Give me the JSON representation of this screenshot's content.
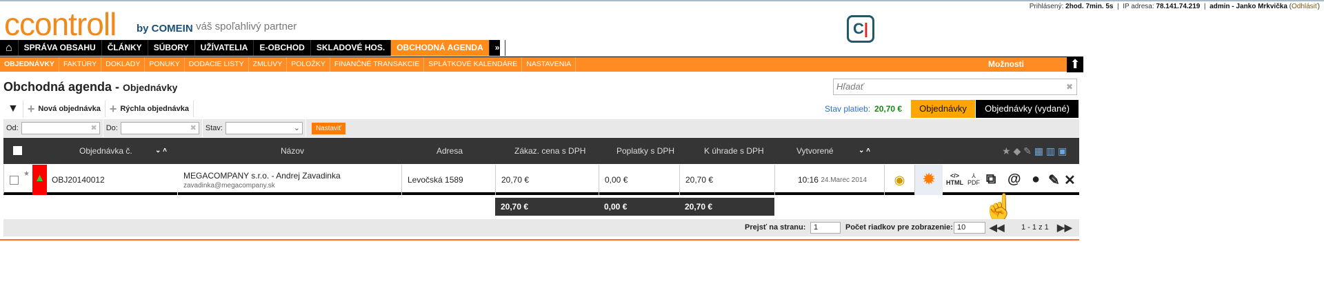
{
  "header": {
    "logo": "ccontroll",
    "logo_by": "by COMEIN",
    "tagline": "- váš spoľahlivý partner",
    "session": {
      "logged_label": "Prihlásený:",
      "logged_time": "2hod. 7min. 5s",
      "ip_label": "IP adresa:",
      "ip": "78.141.74.219",
      "user": "admin - Janko Mrkvička",
      "logout": "Odhlásiť"
    },
    "badge": "C"
  },
  "mainnav": {
    "items": [
      "SPRÁVA OBSAHU",
      "ČLÁNKY",
      "SÚBORY",
      "UŽÍVATELIA",
      "E-OBCHOD",
      "SKLADOVÉ HOS.",
      "OBCHODNÁ AGENDA"
    ],
    "more": "»"
  },
  "subnav": {
    "items": [
      "OBJEDNÁVKY",
      "FAKTÚRY",
      "DOKLADY",
      "PONUKY",
      "DODACIE LISTY",
      "ZMLUVY",
      "POLOŽKY",
      "FINANČNÉ TRANSAKCIE",
      "SPLÁTKOVÉ KALENDÁRE",
      "NASTAVENIA"
    ],
    "options": "Možnosti"
  },
  "page": {
    "title": "Obchodná agenda -",
    "subtitle": "Objednávky",
    "search_placeholder": "Hľadať"
  },
  "toolbar": {
    "new": "Nová objednávka",
    "quick": "Rýchla objednávka",
    "pay_label": "Stav platieb:",
    "pay_value": "20,70 €",
    "tab_orders": "Objednávky",
    "tab_issued": "Objednávky (vydané)"
  },
  "filter": {
    "from": "Od:",
    "to": "Do:",
    "state": "Stav:",
    "apply": "Nastaviť"
  },
  "table": {
    "headers": [
      "Objednávka č.",
      "Názov",
      "Adresa",
      "Zákaz. cena s DPH",
      "Poplatky s DPH",
      "K úhrade s DPH",
      "Vytvorené"
    ],
    "rows": [
      {
        "number": "OBJ20140012",
        "name": "MEGACOMPANY s.r.o. - Andrej Zavadinka",
        "email": "zavadinka@megacompany.sk",
        "address": "Levočská 1589",
        "price": "20,70 €",
        "fees": "0,00 €",
        "due": "20,70 €",
        "time": "10:16",
        "date": "24.Marec 2014"
      }
    ],
    "totals": {
      "price": "20,70 €",
      "fees": "0,00 €",
      "due": "20,70 €"
    },
    "action_labels": {
      "html": "HTML",
      "pdf": "PDF"
    }
  },
  "pager": {
    "goto_label": "Prejsť na stranu:",
    "page": "1",
    "rows_label": "Počet riadkov pre zobrazenie:",
    "rows": "10",
    "range": "1 - 1 z 1"
  }
}
